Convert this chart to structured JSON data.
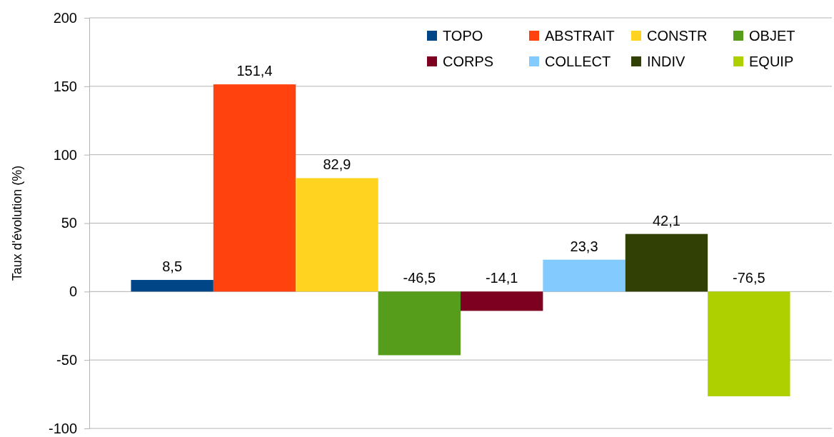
{
  "chart_data": {
    "type": "bar",
    "ylabel": "Taux d'évolution (%)",
    "categories": [
      null
    ],
    "series": [
      {
        "name": "TOPO",
        "color": "#004586",
        "values": [
          8.5
        ],
        "value_labels": [
          "8,5"
        ]
      },
      {
        "name": "ABSTRAIT",
        "color": "#ff420e",
        "values": [
          151.4
        ],
        "value_labels": [
          "151,4"
        ]
      },
      {
        "name": "CONSTR",
        "color": "#ffd320",
        "values": [
          82.9
        ],
        "value_labels": [
          "82,9"
        ]
      },
      {
        "name": "OBJET",
        "color": "#579d1c",
        "values": [
          -46.5
        ],
        "value_labels": [
          "-46,5"
        ]
      },
      {
        "name": "CORPS",
        "color": "#7e0021",
        "values": [
          -14.1
        ],
        "value_labels": [
          "-14,1"
        ]
      },
      {
        "name": "COLLECT",
        "color": "#83caff",
        "values": [
          23.3
        ],
        "value_labels": [
          "23,3"
        ]
      },
      {
        "name": "INDIV",
        "color": "#314004",
        "values": [
          42.1
        ],
        "value_labels": [
          "42,1"
        ]
      },
      {
        "name": "EQUIP",
        "color": "#aecf00",
        "values": [
          -76.5
        ],
        "value_labels": [
          "-76,5"
        ]
      }
    ],
    "ylim": [
      -100,
      200
    ],
    "yticks": [
      -100,
      -50,
      0,
      50,
      100,
      150,
      200
    ],
    "grid": "y",
    "legend": "top right"
  }
}
